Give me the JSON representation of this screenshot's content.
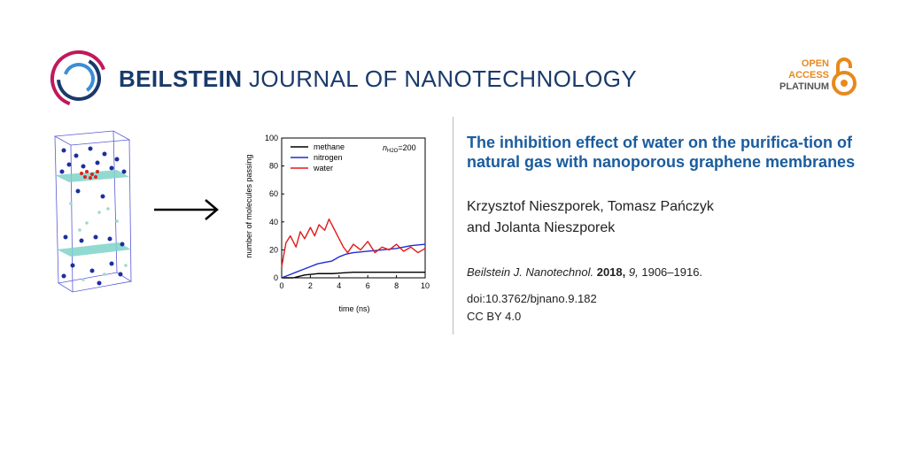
{
  "header": {
    "journal_bold": "BEILSTEIN",
    "journal_rest": " JOURNAL OF NANOTECHNOLOGY",
    "open_access": [
      "OPEN",
      "ACCESS",
      "PLATINUM"
    ]
  },
  "article": {
    "title": "The inhibition effect of water on the purifica-tion of natural gas with nanoporous graphene membranes",
    "authors_line1": "Krzysztof Nieszporek, Tomasz Pańczyk",
    "authors_line2": "and Jolanta Nieszporek",
    "citation_journal": "Beilstein J. Nanotechnol.",
    "citation_year": "2018,",
    "citation_volume": "9,",
    "citation_pages": "1906–1916.",
    "doi": "doi:10.3762/bjnano.9.182",
    "license": "CC BY 4.0"
  },
  "colors": {
    "navy": "#1a3a6b",
    "blue": "#1a5c9e",
    "orange": "#e8891d",
    "magenta": "#c2185b"
  },
  "chart_data": {
    "type": "line",
    "xlabel": "time (ns)",
    "ylabel": "number of molecules passing",
    "xlim": [
      0,
      10
    ],
    "ylim": [
      0,
      100
    ],
    "x_ticks": [
      "0",
      "2",
      "4",
      "6",
      "8",
      "10"
    ],
    "y_ticks": [
      "0",
      "20",
      "40",
      "60",
      "80",
      "100"
    ],
    "annotation": "n",
    "annotation_sub": "H2O",
    "annotation_value": "=200",
    "legend_position": "top-left",
    "series": [
      {
        "name": "methane",
        "color": "#000000",
        "x": [
          0,
          0.8,
          1.2,
          1.6,
          2.5,
          3.5,
          5,
          7,
          10
        ],
        "y": [
          0,
          0,
          1,
          2,
          3,
          3,
          4,
          4,
          4
        ]
      },
      {
        "name": "nitrogen",
        "color": "#1f2bd6",
        "x": [
          0,
          0.5,
          1,
          1.5,
          2,
          2.5,
          3,
          3.5,
          4,
          4.5,
          5,
          6,
          7,
          8,
          9,
          10
        ],
        "y": [
          0,
          2,
          4,
          6,
          8,
          10,
          11,
          12,
          15,
          17,
          18,
          19,
          20,
          21,
          23,
          24
        ]
      },
      {
        "name": "water",
        "color": "#e31a1a",
        "x": [
          0,
          0.3,
          0.6,
          1,
          1.3,
          1.6,
          2,
          2.3,
          2.6,
          3,
          3.3,
          3.6,
          4,
          4.3,
          4.6,
          5,
          5.5,
          6,
          6.5,
          7,
          7.5,
          8,
          8.5,
          9,
          9.5,
          10
        ],
        "y": [
          8,
          25,
          30,
          22,
          33,
          28,
          36,
          30,
          38,
          34,
          42,
          36,
          28,
          22,
          18,
          24,
          20,
          26,
          18,
          22,
          20,
          24,
          19,
          22,
          18,
          21
        ]
      }
    ]
  }
}
